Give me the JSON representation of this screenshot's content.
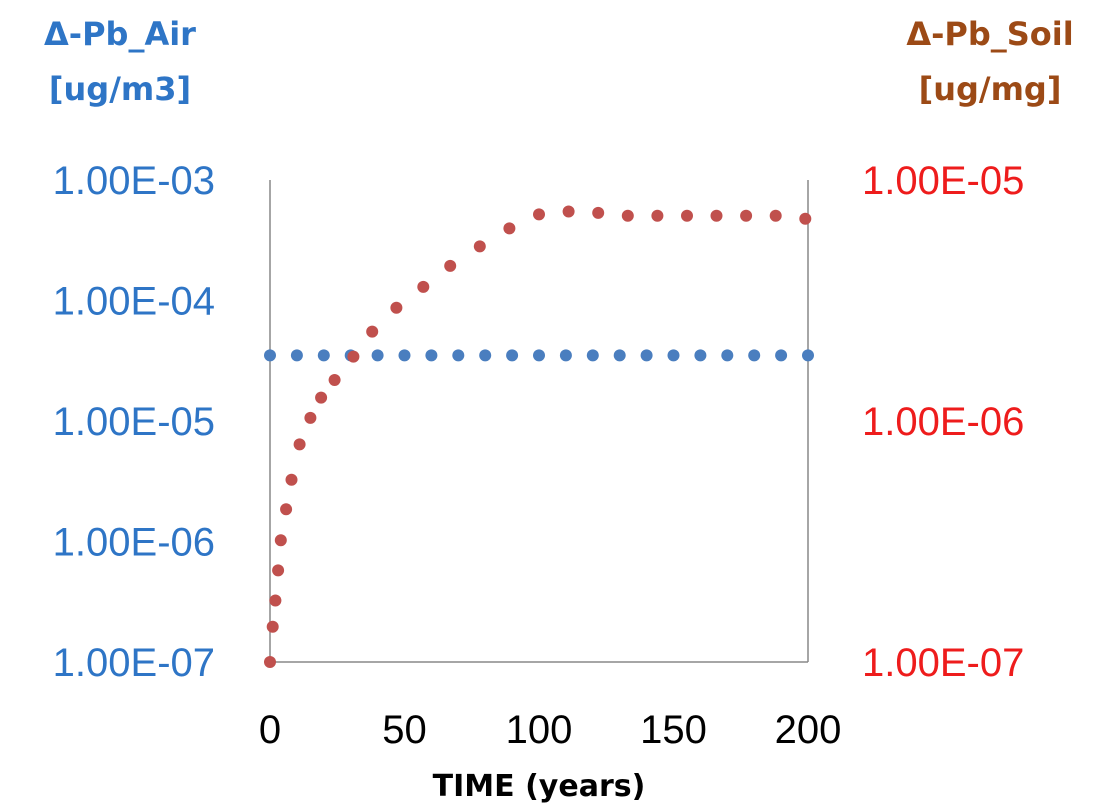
{
  "chart_data": {
    "type": "scatter",
    "xlabel": "TIME (years)",
    "xlim": [
      0,
      200
    ],
    "x_ticks": [
      "0",
      "50",
      "100",
      "150",
      "200"
    ],
    "x_tick_values": [
      0,
      50,
      100,
      150,
      200
    ],
    "left_axis": {
      "title_line1": "Δ-Pb_Air",
      "title_line2": "[ug/m3]",
      "scale": "log",
      "range": [
        1e-07,
        0.001
      ],
      "ticks": [
        "1.00E-07",
        "1.00E-06",
        "1.00E-05",
        "1.00E-04",
        "1.00E-03"
      ],
      "tick_values": [
        1e-07,
        1e-06,
        1e-05,
        0.0001,
        0.001
      ],
      "color": "#2e75c6"
    },
    "right_axis": {
      "title_line1": "Δ-Pb_Soil",
      "title_line2": "[ug/mg]",
      "scale": "log",
      "range": [
        1e-07,
        1e-05
      ],
      "ticks": [
        "1.00E-07",
        "1.00E-06",
        "1.00E-05"
      ],
      "tick_values": [
        1e-07,
        1e-06,
        1e-05
      ],
      "title_color": "#9c4a16",
      "tick_color": "#ee1c1c"
    },
    "series": [
      {
        "axis": "left",
        "color": "#4a7ebf",
        "x": [
          0,
          10,
          20,
          30,
          40,
          50,
          60,
          70,
          80,
          90,
          100,
          110,
          120,
          130,
          140,
          150,
          160,
          170,
          180,
          190,
          200
        ],
        "y": [
          3.5e-05,
          3.5e-05,
          3.5e-05,
          3.5e-05,
          3.5e-05,
          3.5e-05,
          3.5e-05,
          3.5e-05,
          3.5e-05,
          3.5e-05,
          3.5e-05,
          3.5e-05,
          3.5e-05,
          3.5e-05,
          3.5e-05,
          3.5e-05,
          3.5e-05,
          3.5e-05,
          3.5e-05,
          3.5e-05,
          3.5e-05
        ]
      },
      {
        "axis": "right",
        "color": "#c0504d",
        "x": [
          0,
          1,
          2,
          3,
          4,
          6,
          8,
          11,
          15,
          19,
          24,
          31,
          38,
          47,
          57,
          67,
          78,
          89,
          100,
          111,
          122,
          133,
          144,
          155,
          166,
          177,
          188,
          199
        ],
        "y": [
          1e-07,
          1.4e-07,
          1.8e-07,
          2.4e-07,
          3.2e-07,
          4.3e-07,
          5.7e-07,
          8e-07,
          1.03e-06,
          1.25e-06,
          1.48e-06,
          1.85e-06,
          2.35e-06,
          2.95e-06,
          3.6e-06,
          4.4e-06,
          5.3e-06,
          6.3e-06,
          7.2e-06,
          7.4e-06,
          7.3e-06,
          7.1e-06,
          7.1e-06,
          7.1e-06,
          7.1e-06,
          7.1e-06,
          7.1e-06,
          6.9e-06
        ]
      }
    ]
  }
}
